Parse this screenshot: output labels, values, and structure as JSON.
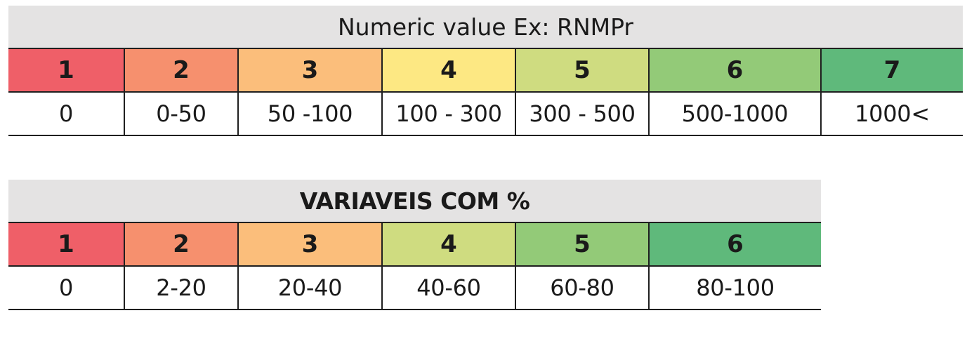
{
  "table1": {
    "title": "Numeric value Ex: RNMPr",
    "headers": [
      "1",
      "2",
      "3",
      "4",
      "5",
      "6",
      "7"
    ],
    "values": [
      "0",
      "0-50",
      "50 -100",
      "100 - 300",
      "300 - 500",
      "500-1000",
      "1000<"
    ],
    "colors": [
      "#ef5f68",
      "#f6906e",
      "#fbbe7b",
      "#fde883",
      "#cfdc80",
      "#93ca78",
      "#5fb97b"
    ]
  },
  "table2": {
    "title": "VARIAVEIS COM  %",
    "headers": [
      "1",
      "2",
      "3",
      "4",
      "5",
      "6"
    ],
    "values": [
      "0",
      "2-20",
      "20-40",
      "40-60",
      "60-80",
      "80-100"
    ],
    "colors": [
      "#ef5f68",
      "#f6906e",
      "#fbbe7b",
      "#cfdc80",
      "#93ca78",
      "#5fb97b"
    ]
  }
}
